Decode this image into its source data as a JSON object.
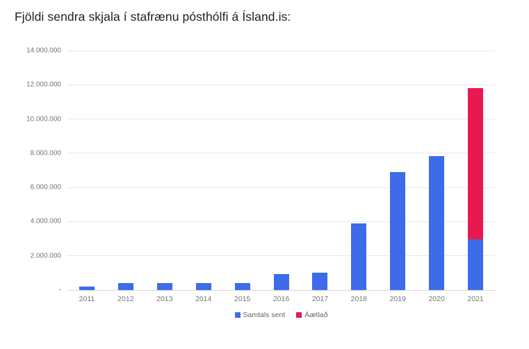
{
  "title": "Fjöldi sendra skjala í stafrænu pósthólfi á Ísland.is:",
  "chart_data": {
    "type": "bar",
    "stacked": true,
    "title": "Fjöldi sendra skjala í stafrænu pósthólfi á Ísland.is:",
    "categories": [
      "2011",
      "2012",
      "2013",
      "2014",
      "2015",
      "2016",
      "2017",
      "2018",
      "2019",
      "2020",
      "2021"
    ],
    "series": [
      {
        "name": "Samtals sent",
        "color": "#3d6bea",
        "values": [
          200000,
          400000,
          400000,
          400000,
          400000,
          950000,
          1000000,
          3900000,
          6900000,
          7850000,
          2950000
        ]
      },
      {
        "name": "Áætlað",
        "color": "#e91950",
        "values": [
          0,
          0,
          0,
          0,
          0,
          0,
          0,
          0,
          0,
          0,
          8850000
        ]
      }
    ],
    "ylim": [
      0,
      14000000
    ],
    "ytick_interval": 2000000,
    "yticks": [
      {
        "value": 0,
        "label": "-"
      },
      {
        "value": 2000000,
        "label": "2.000.000"
      },
      {
        "value": 4000000,
        "label": "4.000.000"
      },
      {
        "value": 6000000,
        "label": "6.000.000"
      },
      {
        "value": 8000000,
        "label": "8.000.000"
      },
      {
        "value": 10000000,
        "label": "10.000.000"
      },
      {
        "value": 12000000,
        "label": "12.000.000"
      },
      {
        "value": 14000000,
        "label": "14.000.000"
      }
    ],
    "grid": true,
    "legend_position": "bottom"
  },
  "colors": {
    "bar_blue": "#3d6bea",
    "bar_red": "#e91950",
    "gridline": "#e7e7e7",
    "axis_line": "#d6d6d6",
    "tick_label": "#757575",
    "legend_label": "#666666",
    "title_text": "#1d1d28"
  }
}
